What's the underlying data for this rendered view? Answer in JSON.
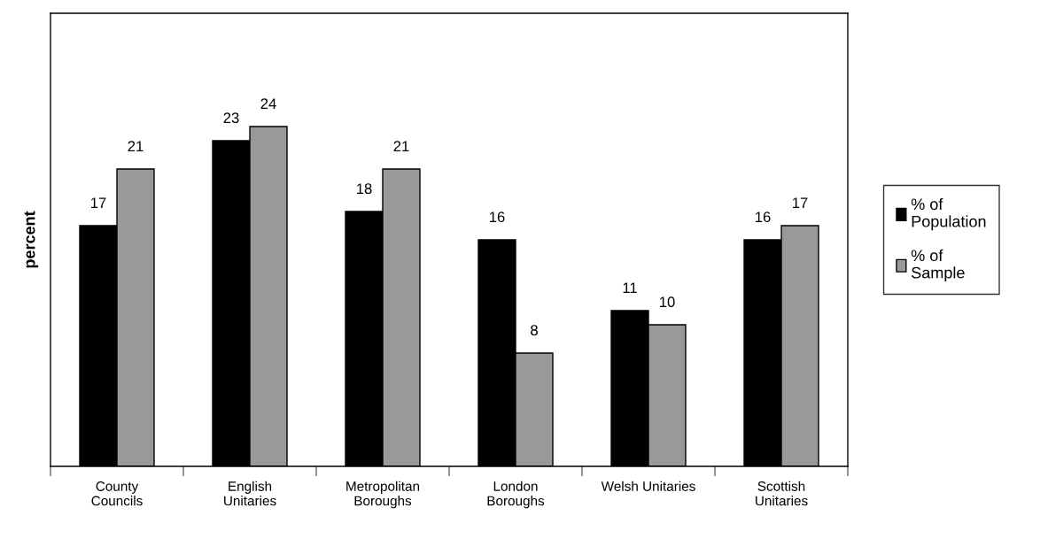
{
  "chart_data": {
    "type": "bar",
    "ylabel": "percent",
    "categories": [
      "County\nCouncils",
      "English\nUnitaries",
      "Metropolitan\nBoroughs",
      "London\nBoroughs",
      "Welsh Unitaries",
      "Scottish\nUnitaries"
    ],
    "series": [
      {
        "name": "% of\nPopulation",
        "color": "#000000",
        "values": [
          17,
          23,
          18,
          16,
          11,
          16
        ]
      },
      {
        "name": "% of\nSample",
        "color": "#999999",
        "values": [
          21,
          24,
          21,
          8,
          10,
          17
        ]
      }
    ],
    "ylim": [
      0,
      32
    ],
    "tick_labels": "x",
    "data_labels": true,
    "legend": "right",
    "grid": false
  }
}
